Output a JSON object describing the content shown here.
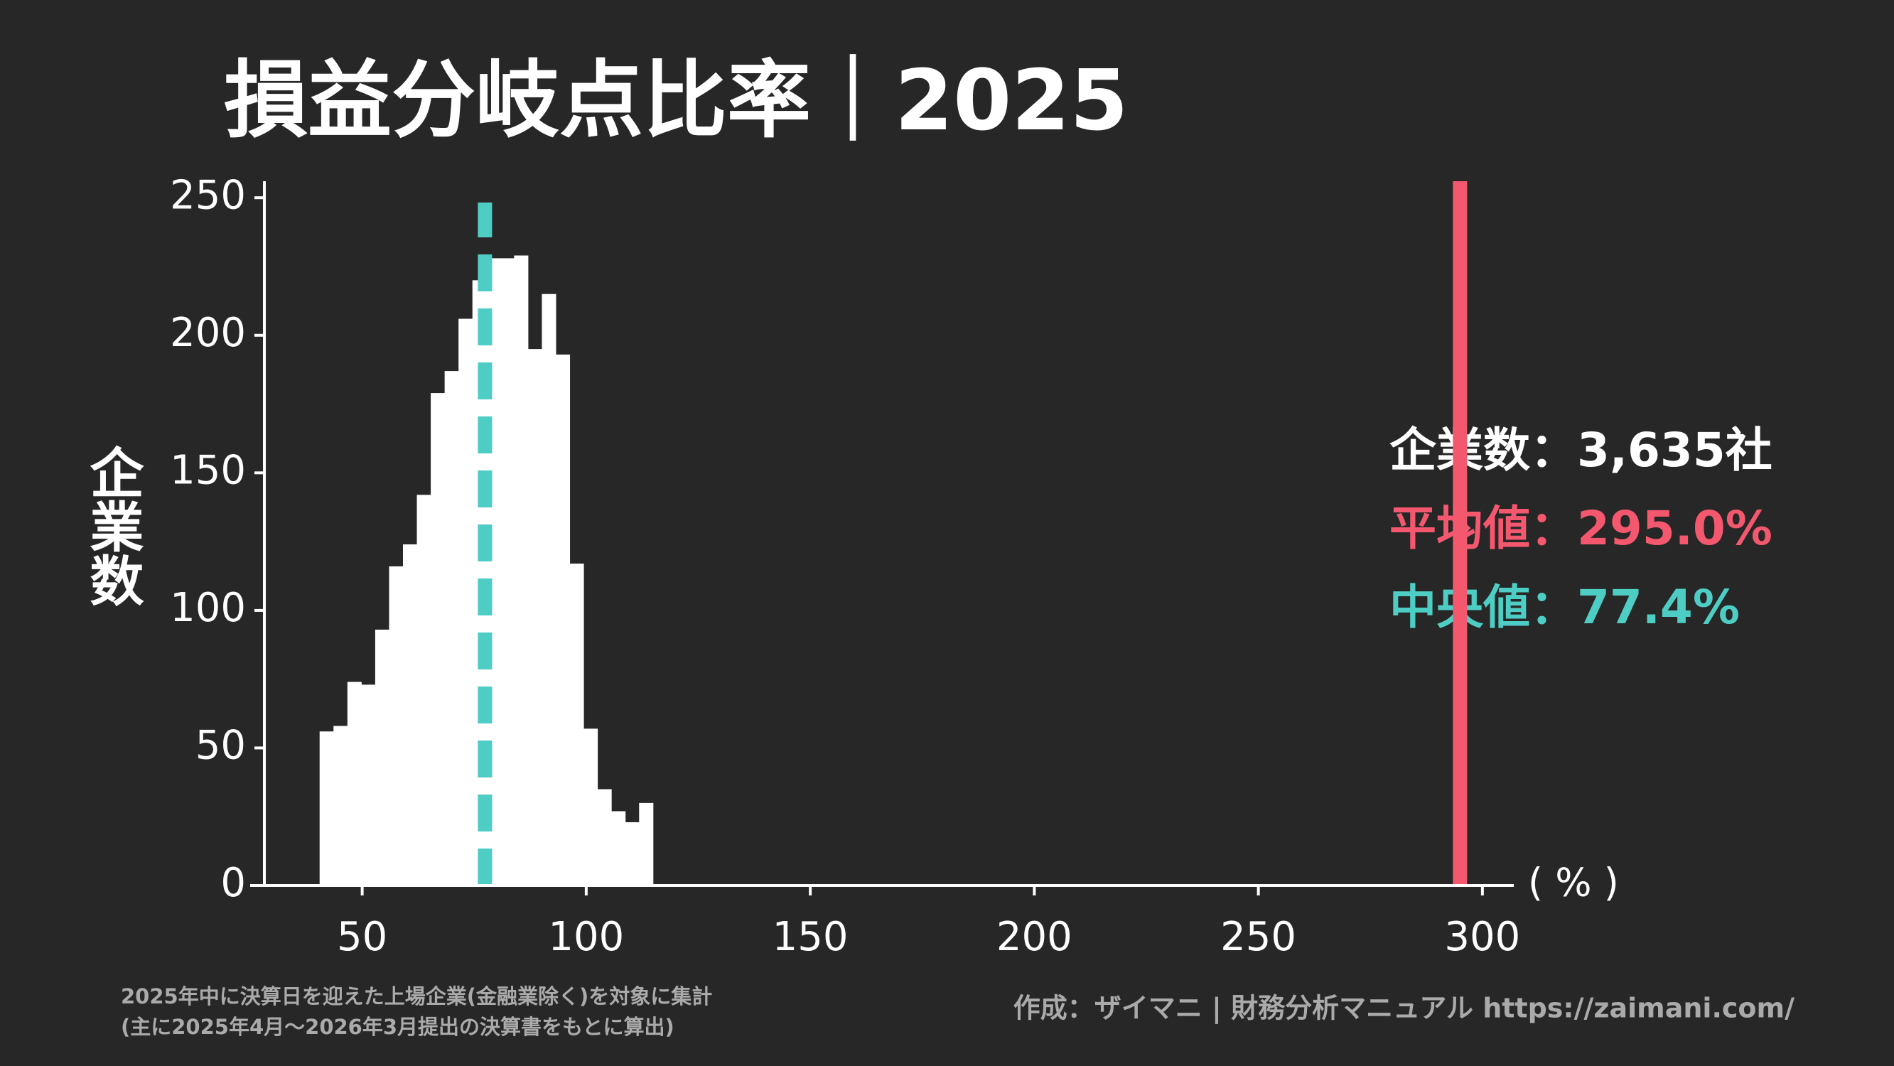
{
  "chart_data": {
    "type": "histogram",
    "title": "損益分岐点比率｜2025",
    "y_label": "企業数",
    "x_unit": "( % )",
    "bins": [
      40.5,
      43.6,
      46.7,
      49.8,
      52.9,
      56,
      59.1,
      62.2,
      65.3,
      68.4,
      71.5,
      74.6,
      77.7,
      80.8,
      83.9,
      87,
      90.1,
      93.2,
      96.3,
      99.4,
      102.5,
      105.6,
      108.7,
      111.8,
      114.9
    ],
    "values": [
      56,
      58,
      74,
      73,
      93,
      116,
      124,
      142,
      179,
      187,
      206,
      220,
      228,
      228,
      229,
      195,
      215,
      193,
      117,
      57,
      35,
      27,
      23,
      30
    ],
    "color": "#ffffff",
    "xlim": [
      25,
      307
    ],
    "xticks": [
      50,
      100,
      150,
      200,
      250,
      300
    ],
    "ylim": [
      0,
      256
    ],
    "yticks": [
      0,
      50,
      100,
      150,
      200,
      250
    ],
    "count_label": "企業数：3,635社",
    "mean": {
      "value": 295.0,
      "label": "平均値：295.0%",
      "color": "#f4586f"
    },
    "median": {
      "value": 77.4,
      "label": "中央値：77.4%",
      "color": "#4ecdc4"
    },
    "footnotes": [
      "2025年中に決算日を迎えた上場企業(金融業除く)を対象に集計",
      "(主に2025年4月〜2026年3月提出の決算書をもとに算出)"
    ],
    "credit": "作成：ザイマニ | 財務分析マニュアル https://zaimani.com/"
  }
}
